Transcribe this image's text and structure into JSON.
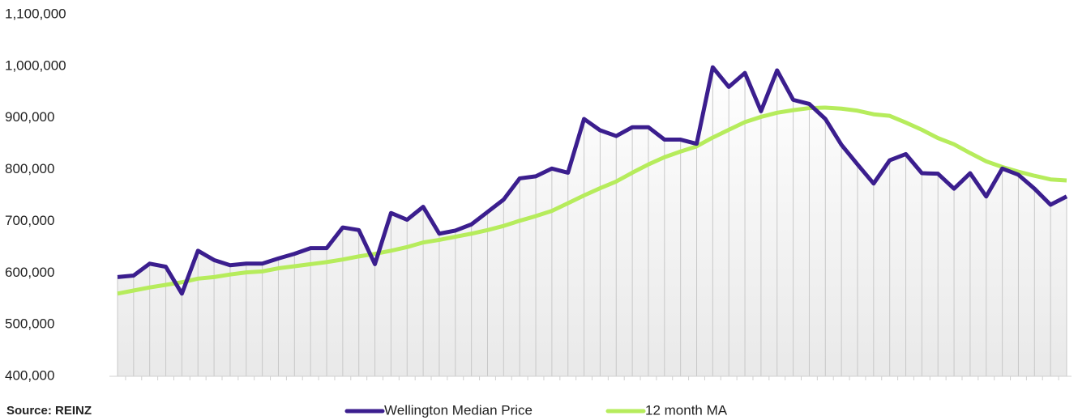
{
  "chart_data": {
    "type": "line",
    "source": "Source: REINZ",
    "categories": [
      null,
      null,
      null,
      null,
      null,
      null,
      null,
      null,
      null,
      null,
      null,
      null,
      null,
      null,
      null,
      null,
      null,
      null,
      null,
      null,
      null,
      null,
      null,
      null,
      null,
      null,
      null,
      null,
      null,
      null,
      null,
      null,
      null,
      null,
      null,
      null,
      null,
      null,
      null,
      null,
      null,
      null,
      null,
      null,
      null,
      null,
      null,
      null,
      null,
      null,
      null,
      null,
      null,
      null,
      null,
      null,
      null,
      null,
      null,
      null
    ],
    "series": [
      {
        "name": "Wellington Median Price",
        "color": "#3b1e8e",
        "values": [
          592000,
          595000,
          618000,
          612000,
          560000,
          643000,
          625000,
          615000,
          618000,
          618000,
          628000,
          637000,
          648000,
          648000,
          688000,
          683000,
          617000,
          716000,
          703000,
          728000,
          676000,
          682000,
          694000,
          718000,
          742000,
          783000,
          787000,
          802000,
          794000,
          898000,
          876000,
          865000,
          882000,
          882000,
          858000,
          858000,
          850000,
          998000,
          960000,
          987000,
          913000,
          992000,
          935000,
          927000,
          898000,
          848000,
          810000,
          773000,
          818000,
          830000,
          793000,
          792000,
          763000,
          793000,
          748000,
          802000,
          790000,
          763000,
          732000,
          748000
        ]
      },
      {
        "name": "12 month MA",
        "color": "#b6ec5c",
        "values": [
          560000,
          566000,
          572000,
          577000,
          582000,
          589000,
          592000,
          597000,
          601000,
          603000,
          609000,
          613000,
          617000,
          621000,
          626000,
          632000,
          637000,
          643000,
          650000,
          659000,
          664000,
          670000,
          676000,
          683000,
          691000,
          701000,
          710000,
          720000,
          735000,
          750000,
          764000,
          777000,
          794000,
          810000,
          824000,
          835000,
          845000,
          862000,
          877000,
          892000,
          902000,
          910000,
          915000,
          919000,
          920000,
          918000,
          914000,
          907000,
          904000,
          891000,
          877000,
          861000,
          849000,
          832000,
          816000,
          805000,
          796000,
          788000,
          781000,
          779000
        ]
      }
    ],
    "ylim": [
      400000,
      1100000
    ],
    "yticks": [
      {
        "value": 400000,
        "label": "400,000"
      },
      {
        "value": 500000,
        "label": "500,000"
      },
      {
        "value": 600000,
        "label": "600,000"
      },
      {
        "value": 700000,
        "label": "700,000"
      },
      {
        "value": 800000,
        "label": "800,000"
      },
      {
        "value": 900000,
        "label": "900,000"
      },
      {
        "value": 1000000,
        "label": "1,000,000"
      },
      {
        "value": 1100000,
        "label": "1,100,000"
      }
    ]
  }
}
